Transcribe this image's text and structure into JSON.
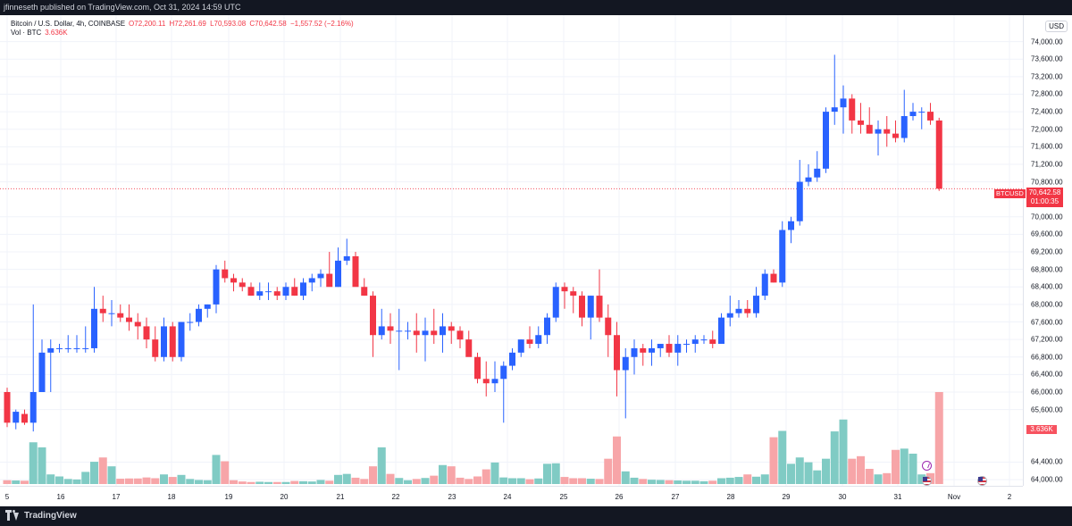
{
  "publication": "jfinneseth published on TradingView.com, Oct 31, 2024 14:59 UTC",
  "legend": {
    "symbol": "Bitcoin / U.S. Dollar, 4h, COINBASE",
    "open": "O72,200.11",
    "high": "H72,261.69",
    "low": "L70,593.08",
    "close": "C70,642.58",
    "change": "−1,557.52 (−2.16%)",
    "volume_label": "Vol · BTC",
    "volume_value": "3.636K"
  },
  "price_axis": {
    "currency": "USD",
    "ticks": [
      "74,000.00",
      "73,600.00",
      "73,200.00",
      "72,800.00",
      "72,400.00",
      "72,000.00",
      "71,600.00",
      "71,200.00",
      "70,800.00",
      "70,000.00",
      "69,600.00",
      "69,200.00",
      "68,800.00",
      "68,400.00",
      "68,000.00",
      "67,600.00",
      "67,200.00",
      "66,800.00",
      "66,400.00",
      "66,000.00",
      "65,600.00",
      "64,400.00",
      "64,000.00"
    ]
  },
  "last_price": {
    "symbol": "BTCUSD",
    "price": "70,642.58",
    "countdown": "01:00:35"
  },
  "volume_tag": "3.636K",
  "time_axis": {
    "labels": [
      "5",
      "16",
      "17",
      "18",
      "19",
      "20",
      "21",
      "22",
      "23",
      "24",
      "25",
      "26",
      "27",
      "28",
      "29",
      "30",
      "31",
      "Nov",
      "2"
    ]
  },
  "branding": {
    "logo_text": "TradingView"
  },
  "colors": {
    "up": "#2962ff",
    "down": "#f23645",
    "vol_up": "#80cbc4",
    "vol_down": "#f7a5a8",
    "background": "#ffffff",
    "grid": "#f0f3fa",
    "bar_bg": "#131722"
  },
  "chart_data": {
    "type": "candlestick",
    "title": "Bitcoin / U.S. Dollar, 4h, COINBASE",
    "interval": "4h",
    "y_range": [
      63900,
      74400
    ],
    "grid": true,
    "last_price_line": 70642.58,
    "candles": [
      {
        "o": 66000,
        "h": 66100,
        "l": 65200,
        "c": 65300,
        "v": 150
      },
      {
        "o": 65300,
        "h": 65600,
        "l": 65150,
        "c": 65550,
        "v": 140
      },
      {
        "o": 65500,
        "h": 65600,
        "l": 65250,
        "c": 65300,
        "v": 130
      },
      {
        "o": 65300,
        "h": 68000,
        "l": 65100,
        "c": 66000,
        "v": 1650
      },
      {
        "o": 66000,
        "h": 67200,
        "l": 66000,
        "c": 66900,
        "v": 1450
      },
      {
        "o": 66900,
        "h": 67200,
        "l": 66000,
        "c": 67000,
        "v": 380
      },
      {
        "o": 67000,
        "h": 67100,
        "l": 66900,
        "c": 67000,
        "v": 300
      },
      {
        "o": 67000,
        "h": 67300,
        "l": 66900,
        "c": 67000,
        "v": 200
      },
      {
        "o": 67000,
        "h": 67300,
        "l": 66900,
        "c": 67000,
        "v": 180
      },
      {
        "o": 67000,
        "h": 67500,
        "l": 66900,
        "c": 67000,
        "v": 480
      },
      {
        "o": 67000,
        "h": 68400,
        "l": 66900,
        "c": 67900,
        "v": 880
      },
      {
        "o": 67900,
        "h": 68200,
        "l": 67600,
        "c": 67800,
        "v": 1050
      },
      {
        "o": 67800,
        "h": 68100,
        "l": 67500,
        "c": 67800,
        "v": 700
      },
      {
        "o": 67800,
        "h": 68000,
        "l": 67600,
        "c": 67700,
        "v": 210
      },
      {
        "o": 67700,
        "h": 68000,
        "l": 67400,
        "c": 67600,
        "v": 220
      },
      {
        "o": 67600,
        "h": 67800,
        "l": 67200,
        "c": 67500,
        "v": 220
      },
      {
        "o": 67500,
        "h": 67700,
        "l": 67000,
        "c": 67200,
        "v": 260
      },
      {
        "o": 67200,
        "h": 67500,
        "l": 66700,
        "c": 66800,
        "v": 230
      },
      {
        "o": 66800,
        "h": 67700,
        "l": 66700,
        "c": 67500,
        "v": 380
      },
      {
        "o": 67500,
        "h": 67600,
        "l": 66700,
        "c": 66800,
        "v": 280
      },
      {
        "o": 66800,
        "h": 67600,
        "l": 66700,
        "c": 67600,
        "v": 360
      },
      {
        "o": 67600,
        "h": 67800,
        "l": 67400,
        "c": 67600,
        "v": 200
      },
      {
        "o": 67600,
        "h": 68000,
        "l": 67500,
        "c": 67900,
        "v": 160
      },
      {
        "o": 67900,
        "h": 68000,
        "l": 67700,
        "c": 68000,
        "v": 150
      },
      {
        "o": 68000,
        "h": 68900,
        "l": 67800,
        "c": 68800,
        "v": 1150
      },
      {
        "o": 68800,
        "h": 69000,
        "l": 68500,
        "c": 68600,
        "v": 900
      },
      {
        "o": 68600,
        "h": 68700,
        "l": 68300,
        "c": 68500,
        "v": 150
      },
      {
        "o": 68500,
        "h": 68600,
        "l": 68300,
        "c": 68400,
        "v": 100
      },
      {
        "o": 68400,
        "h": 68500,
        "l": 68200,
        "c": 68200,
        "v": 80
      },
      {
        "o": 68200,
        "h": 68500,
        "l": 68100,
        "c": 68300,
        "v": 90
      },
      {
        "o": 68300,
        "h": 68500,
        "l": 68100,
        "c": 68300,
        "v": 80
      },
      {
        "o": 68300,
        "h": 68400,
        "l": 68100,
        "c": 68200,
        "v": 80
      },
      {
        "o": 68200,
        "h": 68500,
        "l": 68100,
        "c": 68400,
        "v": 80
      },
      {
        "o": 68400,
        "h": 68600,
        "l": 68200,
        "c": 68200,
        "v": 120
      },
      {
        "o": 68200,
        "h": 68600,
        "l": 68100,
        "c": 68500,
        "v": 110
      },
      {
        "o": 68500,
        "h": 68700,
        "l": 68300,
        "c": 68600,
        "v": 100
      },
      {
        "o": 68600,
        "h": 68800,
        "l": 68400,
        "c": 68700,
        "v": 160
      },
      {
        "o": 68700,
        "h": 69200,
        "l": 68500,
        "c": 68400,
        "v": 130
      },
      {
        "o": 68400,
        "h": 69300,
        "l": 68400,
        "c": 69000,
        "v": 360
      },
      {
        "o": 69000,
        "h": 69500,
        "l": 68900,
        "c": 69100,
        "v": 400
      },
      {
        "o": 69100,
        "h": 69200,
        "l": 68500,
        "c": 68400,
        "v": 250
      },
      {
        "o": 68400,
        "h": 68600,
        "l": 68200,
        "c": 68200,
        "v": 200
      },
      {
        "o": 68200,
        "h": 68300,
        "l": 66800,
        "c": 67300,
        "v": 700
      },
      {
        "o": 67300,
        "h": 67900,
        "l": 67200,
        "c": 67500,
        "v": 1450
      },
      {
        "o": 67500,
        "h": 67800,
        "l": 67100,
        "c": 67400,
        "v": 400
      },
      {
        "o": 67400,
        "h": 67900,
        "l": 66500,
        "c": 67400,
        "v": 240
      },
      {
        "o": 67400,
        "h": 67600,
        "l": 67200,
        "c": 67400,
        "v": 150
      },
      {
        "o": 67400,
        "h": 67800,
        "l": 66900,
        "c": 67300,
        "v": 200
      },
      {
        "o": 67300,
        "h": 67700,
        "l": 66700,
        "c": 67400,
        "v": 240
      },
      {
        "o": 67400,
        "h": 67900,
        "l": 67100,
        "c": 67300,
        "v": 330
      },
      {
        "o": 67300,
        "h": 67800,
        "l": 66900,
        "c": 67500,
        "v": 750
      },
      {
        "o": 67500,
        "h": 67600,
        "l": 67100,
        "c": 67400,
        "v": 700
      },
      {
        "o": 67400,
        "h": 67500,
        "l": 67000,
        "c": 67200,
        "v": 250
      },
      {
        "o": 67200,
        "h": 67400,
        "l": 66900,
        "c": 66800,
        "v": 200
      },
      {
        "o": 66800,
        "h": 66900,
        "l": 66200,
        "c": 66300,
        "v": 300
      },
      {
        "o": 66300,
        "h": 66700,
        "l": 65900,
        "c": 66200,
        "v": 580
      },
      {
        "o": 66200,
        "h": 66700,
        "l": 66000,
        "c": 66300,
        "v": 850
      },
      {
        "o": 66300,
        "h": 66700,
        "l": 65300,
        "c": 66600,
        "v": 260
      },
      {
        "o": 66600,
        "h": 67000,
        "l": 66500,
        "c": 66900,
        "v": 230
      },
      {
        "o": 66900,
        "h": 67200,
        "l": 66800,
        "c": 67200,
        "v": 230
      },
      {
        "o": 67200,
        "h": 67500,
        "l": 67000,
        "c": 67100,
        "v": 190
      },
      {
        "o": 67100,
        "h": 67500,
        "l": 67000,
        "c": 67300,
        "v": 220
      },
      {
        "o": 67300,
        "h": 67800,
        "l": 67100,
        "c": 67700,
        "v": 800
      },
      {
        "o": 67700,
        "h": 68500,
        "l": 67600,
        "c": 68400,
        "v": 820
      },
      {
        "o": 68400,
        "h": 68500,
        "l": 67900,
        "c": 68300,
        "v": 280
      },
      {
        "o": 68300,
        "h": 68400,
        "l": 67800,
        "c": 68200,
        "v": 230
      },
      {
        "o": 68200,
        "h": 68300,
        "l": 67500,
        "c": 67700,
        "v": 230
      },
      {
        "o": 67700,
        "h": 68200,
        "l": 67200,
        "c": 68200,
        "v": 210
      },
      {
        "o": 68200,
        "h": 68800,
        "l": 67600,
        "c": 67700,
        "v": 200
      },
      {
        "o": 67700,
        "h": 68000,
        "l": 66800,
        "c": 67300,
        "v": 1000
      },
      {
        "o": 67300,
        "h": 67600,
        "l": 65900,
        "c": 66500,
        "v": 1880
      },
      {
        "o": 66500,
        "h": 67000,
        "l": 65400,
        "c": 66800,
        "v": 500
      },
      {
        "o": 66800,
        "h": 67200,
        "l": 66400,
        "c": 67000,
        "v": 250
      },
      {
        "o": 67000,
        "h": 67100,
        "l": 66600,
        "c": 66900,
        "v": 200
      },
      {
        "o": 66900,
        "h": 67200,
        "l": 66600,
        "c": 67000,
        "v": 170
      },
      {
        "o": 67000,
        "h": 67100,
        "l": 66800,
        "c": 67100,
        "v": 160
      },
      {
        "o": 67100,
        "h": 67300,
        "l": 66800,
        "c": 66900,
        "v": 150
      },
      {
        "o": 66900,
        "h": 67300,
        "l": 66600,
        "c": 67100,
        "v": 140
      },
      {
        "o": 67100,
        "h": 67200,
        "l": 66900,
        "c": 67100,
        "v": 130
      },
      {
        "o": 67100,
        "h": 67300,
        "l": 66900,
        "c": 67200,
        "v": 130
      },
      {
        "o": 67200,
        "h": 67300,
        "l": 67100,
        "c": 67200,
        "v": 110
      },
      {
        "o": 67200,
        "h": 67400,
        "l": 67000,
        "c": 67100,
        "v": 130
      },
      {
        "o": 67100,
        "h": 67800,
        "l": 67100,
        "c": 67700,
        "v": 230
      },
      {
        "o": 67700,
        "h": 68200,
        "l": 67500,
        "c": 67800,
        "v": 250
      },
      {
        "o": 67800,
        "h": 68100,
        "l": 67700,
        "c": 67900,
        "v": 280
      },
      {
        "o": 67900,
        "h": 68100,
        "l": 67700,
        "c": 67800,
        "v": 380
      },
      {
        "o": 67800,
        "h": 68400,
        "l": 67700,
        "c": 68200,
        "v": 290
      },
      {
        "o": 68200,
        "h": 68800,
        "l": 68100,
        "c": 68700,
        "v": 380
      },
      {
        "o": 68700,
        "h": 68800,
        "l": 68500,
        "c": 68500,
        "v": 1850
      },
      {
        "o": 68500,
        "h": 69900,
        "l": 68400,
        "c": 69700,
        "v": 2100
      },
      {
        "o": 69700,
        "h": 70000,
        "l": 69400,
        "c": 69900,
        "v": 800
      },
      {
        "o": 69900,
        "h": 71300,
        "l": 69800,
        "c": 70800,
        "v": 1050
      },
      {
        "o": 70800,
        "h": 71200,
        "l": 70700,
        "c": 70900,
        "v": 860
      },
      {
        "o": 70900,
        "h": 71500,
        "l": 70800,
        "c": 71100,
        "v": 540
      },
      {
        "o": 71100,
        "h": 72500,
        "l": 71000,
        "c": 72400,
        "v": 1000
      },
      {
        "o": 72400,
        "h": 73700,
        "l": 72100,
        "c": 72500,
        "v": 2080
      },
      {
        "o": 72500,
        "h": 73000,
        "l": 71900,
        "c": 72700,
        "v": 2550
      },
      {
        "o": 72700,
        "h": 72800,
        "l": 71900,
        "c": 72200,
        "v": 1000
      },
      {
        "o": 72200,
        "h": 72600,
        "l": 71900,
        "c": 72100,
        "v": 1100
      },
      {
        "o": 72100,
        "h": 72500,
        "l": 71900,
        "c": 71900,
        "v": 600
      },
      {
        "o": 71900,
        "h": 72200,
        "l": 71400,
        "c": 72000,
        "v": 380
      },
      {
        "o": 72000,
        "h": 72300,
        "l": 71600,
        "c": 71900,
        "v": 430
      },
      {
        "o": 71900,
        "h": 72200,
        "l": 71700,
        "c": 71800,
        "v": 1350
      },
      {
        "o": 71800,
        "h": 72900,
        "l": 71700,
        "c": 72300,
        "v": 1400
      },
      {
        "o": 72300,
        "h": 72600,
        "l": 72200,
        "c": 72400,
        "v": 1200
      },
      {
        "o": 72400,
        "h": 72500,
        "l": 72000,
        "c": 72400,
        "v": 380
      },
      {
        "o": 72400,
        "h": 72600,
        "l": 72100,
        "c": 72200,
        "v": 430
      },
      {
        "o": 72200,
        "h": 72262,
        "l": 70593,
        "c": 70643,
        "v": 3636
      }
    ]
  }
}
